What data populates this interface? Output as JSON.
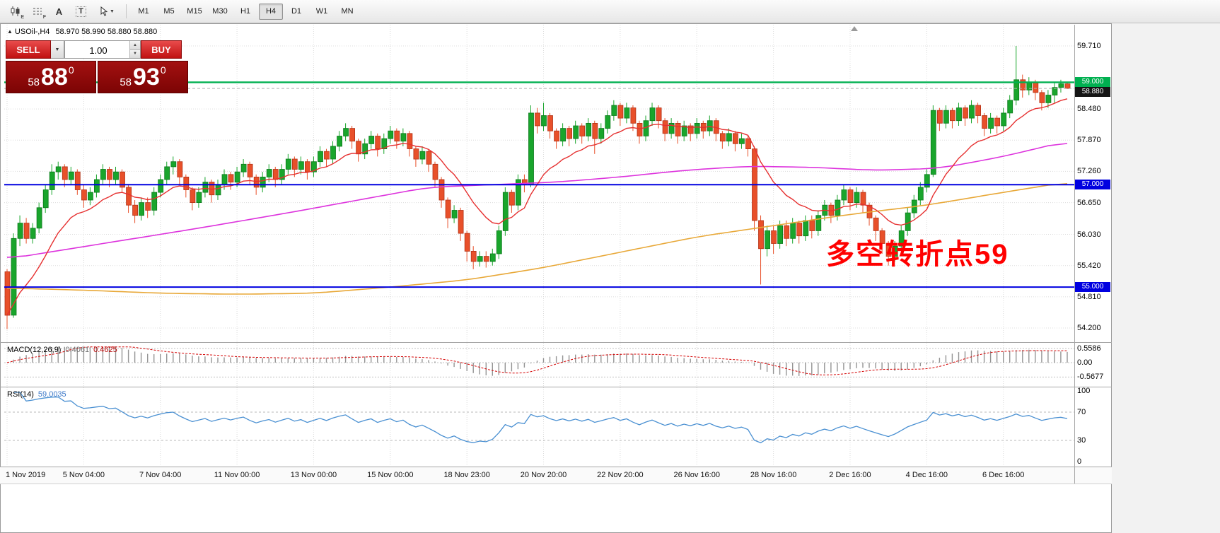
{
  "toolbar": {
    "tools": {
      "sub_e": "E",
      "sub_f": "F",
      "a_label": "A",
      "t_label": "T"
    },
    "timeframes": [
      "M1",
      "M5",
      "M15",
      "M30",
      "H1",
      "H4",
      "D1",
      "W1",
      "MN"
    ],
    "active_timeframe": "H4"
  },
  "chart": {
    "collapse_glyph": "▲",
    "symbol_title": "USOil-,H4",
    "ohlc_text": "58.970 58.990 58.880 58.880"
  },
  "trade_panel": {
    "sell_label": "SELL",
    "buy_label": "BUY",
    "volume": "1.00",
    "dropdown_glyph": "▼",
    "spin_up": "▲",
    "spin_down": "▼",
    "bid": {
      "prefix": "58",
      "big": "88",
      "sup": "0"
    },
    "ask": {
      "prefix": "58",
      "big": "93",
      "sup": "0"
    }
  },
  "annotation": {
    "text": "多空转折点59",
    "color": "#ff0000"
  },
  "macd_panel": {
    "label": "MACD(12,26,9)",
    "value_main": "0.4061",
    "value_signal": "0.4625",
    "axis_labels": [
      "0.5586",
      "0.00",
      "-0.5677"
    ]
  },
  "rsi_panel": {
    "label": "RSI(14)",
    "value": "59.0035",
    "axis_labels": [
      "100",
      "70",
      "30",
      "0"
    ]
  },
  "chart_data": {
    "type": "candlestick",
    "symbol": "USOil-",
    "timeframe": "H4",
    "up_color": "#19a52c",
    "down_color": "#e8502a",
    "price_ticks": [
      {
        "label": "59.710",
        "price": 59.71
      },
      {
        "label": "58.480",
        "price": 58.48
      },
      {
        "label": "57.870",
        "price": 57.87
      },
      {
        "label": "57.260",
        "price": 57.26
      },
      {
        "label": "56.650",
        "price": 56.65
      },
      {
        "label": "56.030",
        "price": 56.03
      },
      {
        "label": "55.420",
        "price": 55.42
      },
      {
        "label": "54.810",
        "price": 54.81
      },
      {
        "label": "54.200",
        "price": 54.2
      }
    ],
    "hlines": [
      {
        "price": 59.0,
        "label": "59.000",
        "color": "#00b050",
        "width": 2.4
      },
      {
        "price": 57.0,
        "label": "57.000",
        "color": "#0000e0",
        "width": 2
      },
      {
        "price": 55.0,
        "label": "55.000",
        "color": "#0000e0",
        "width": 2
      }
    ],
    "current_price": {
      "price": 58.88,
      "label": "58.880",
      "bg": "#151515"
    },
    "time_labels": [
      {
        "i": 0,
        "label": "1 Nov 2019"
      },
      {
        "i": 12,
        "label": "5 Nov 04:00"
      },
      {
        "i": 24,
        "label": "7 Nov 04:00"
      },
      {
        "i": 36,
        "label": "11 Nov 00:00"
      },
      {
        "i": 48,
        "label": "13 Nov 00:00"
      },
      {
        "i": 60,
        "label": "15 Nov 00:00"
      },
      {
        "i": 72,
        "label": "18 Nov 23:00"
      },
      {
        "i": 84,
        "label": "20 Nov 20:00"
      },
      {
        "i": 96,
        "label": "22 Nov 20:00"
      },
      {
        "i": 108,
        "label": "26 Nov 16:00"
      },
      {
        "i": 120,
        "label": "28 Nov 16:00"
      },
      {
        "i": 132,
        "label": "2 Dec 16:00"
      },
      {
        "i": 144,
        "label": "4 Dec 16:00"
      },
      {
        "i": 156,
        "label": "6 Dec 16:00"
      }
    ],
    "overlays": {
      "ma_fast": {
        "color": "#e63030",
        "period": 13
      },
      "ma_mid": {
        "color": "#dd33dd",
        "points": [
          [
            0,
            55.55
          ],
          [
            10,
            55.75
          ],
          [
            20,
            55.95
          ],
          [
            30,
            56.15
          ],
          [
            44,
            56.45
          ],
          [
            55,
            56.7
          ],
          [
            66,
            56.95
          ],
          [
            76,
            57.0
          ],
          [
            86,
            57.05
          ],
          [
            96,
            57.15
          ],
          [
            106,
            57.28
          ],
          [
            116,
            57.36
          ],
          [
            126,
            57.34
          ],
          [
            136,
            57.28
          ],
          [
            146,
            57.32
          ],
          [
            156,
            57.55
          ],
          [
            166,
            57.85
          ]
        ]
      },
      "ma_slow": {
        "color": "#e8a838",
        "points": [
          [
            0,
            54.98
          ],
          [
            12,
            54.94
          ],
          [
            24,
            54.88
          ],
          [
            36,
            54.86
          ],
          [
            48,
            54.88
          ],
          [
            60,
            55.0
          ],
          [
            72,
            55.14
          ],
          [
            84,
            55.38
          ],
          [
            96,
            55.68
          ],
          [
            108,
            55.98
          ],
          [
            120,
            56.2
          ],
          [
            132,
            56.42
          ],
          [
            144,
            56.6
          ],
          [
            156,
            56.85
          ],
          [
            166,
            57.05
          ]
        ]
      }
    },
    "macd": {
      "fast": 12,
      "slow": 26,
      "signal": 9,
      "hist_color": "#949494",
      "signal_color": "#d40000",
      "levels": [
        0.5586,
        0.0,
        -0.5677
      ]
    },
    "rsi": {
      "period": 14,
      "color": "#4a90d2",
      "levels": [
        70,
        30
      ]
    },
    "candles": [
      [
        55.3,
        55.35,
        54.18,
        54.45
      ],
      [
        54.45,
        56.05,
        54.4,
        55.95
      ],
      [
        55.95,
        56.4,
        55.8,
        56.25
      ],
      [
        56.25,
        56.35,
        55.85,
        55.95
      ],
      [
        55.95,
        56.25,
        55.85,
        56.15
      ],
      [
        56.15,
        56.65,
        56.05,
        56.55
      ],
      [
        56.55,
        57.0,
        56.45,
        56.9
      ],
      [
        56.9,
        57.4,
        56.8,
        57.25
      ],
      [
        57.25,
        57.45,
        57.1,
        57.35
      ],
      [
        57.35,
        57.4,
        56.95,
        57.1
      ],
      [
        57.1,
        57.35,
        57.0,
        57.25
      ],
      [
        57.25,
        57.3,
        56.8,
        56.9
      ],
      [
        56.9,
        57.0,
        56.55,
        56.7
      ],
      [
        56.7,
        56.95,
        56.6,
        56.85
      ],
      [
        56.85,
        57.2,
        56.75,
        57.1
      ],
      [
        57.1,
        57.4,
        57.0,
        57.3
      ],
      [
        57.3,
        57.35,
        56.95,
        57.1
      ],
      [
        57.1,
        57.35,
        57.0,
        57.25
      ],
      [
        57.25,
        57.3,
        56.85,
        56.95
      ],
      [
        56.95,
        57.0,
        56.45,
        56.6
      ],
      [
        56.6,
        56.7,
        56.25,
        56.4
      ],
      [
        56.4,
        56.75,
        56.3,
        56.65
      ],
      [
        56.65,
        56.75,
        56.35,
        56.5
      ],
      [
        56.5,
        56.95,
        56.4,
        56.85
      ],
      [
        56.85,
        57.2,
        56.75,
        57.1
      ],
      [
        57.1,
        57.45,
        57.0,
        57.35
      ],
      [
        57.35,
        57.55,
        57.2,
        57.45
      ],
      [
        57.45,
        57.5,
        57.0,
        57.15
      ],
      [
        57.15,
        57.2,
        56.75,
        56.9
      ],
      [
        56.9,
        56.95,
        56.5,
        56.65
      ],
      [
        56.65,
        56.95,
        56.55,
        56.85
      ],
      [
        56.85,
        57.15,
        56.75,
        57.05
      ],
      [
        57.05,
        57.1,
        56.65,
        56.8
      ],
      [
        56.8,
        57.1,
        56.7,
        57.0
      ],
      [
        57.0,
        57.3,
        56.9,
        57.2
      ],
      [
        57.2,
        57.25,
        56.9,
        57.05
      ],
      [
        57.05,
        57.35,
        56.95,
        57.25
      ],
      [
        57.25,
        57.5,
        57.15,
        57.4
      ],
      [
        57.4,
        57.45,
        57.0,
        57.15
      ],
      [
        57.15,
        57.2,
        56.8,
        56.95
      ],
      [
        56.95,
        57.25,
        56.85,
        57.15
      ],
      [
        57.15,
        57.4,
        57.05,
        57.3
      ],
      [
        57.3,
        57.35,
        56.95,
        57.1
      ],
      [
        57.1,
        57.4,
        57.0,
        57.3
      ],
      [
        57.3,
        57.6,
        57.2,
        57.5
      ],
      [
        57.5,
        57.55,
        57.15,
        57.3
      ],
      [
        57.3,
        57.55,
        57.2,
        57.45
      ],
      [
        57.45,
        57.5,
        57.1,
        57.25
      ],
      [
        57.25,
        57.55,
        57.15,
        57.45
      ],
      [
        57.45,
        57.75,
        57.35,
        57.65
      ],
      [
        57.65,
        57.7,
        57.35,
        57.5
      ],
      [
        57.5,
        57.85,
        57.4,
        57.75
      ],
      [
        57.75,
        58.05,
        57.65,
        57.95
      ],
      [
        57.95,
        58.2,
        57.85,
        58.1
      ],
      [
        58.1,
        58.15,
        57.7,
        57.85
      ],
      [
        57.85,
        57.9,
        57.45,
        57.6
      ],
      [
        57.6,
        57.9,
        57.5,
        57.8
      ],
      [
        57.8,
        58.05,
        57.7,
        57.95
      ],
      [
        57.95,
        58.0,
        57.55,
        57.7
      ],
      [
        57.7,
        58.0,
        57.6,
        57.9
      ],
      [
        57.9,
        58.15,
        57.8,
        58.05
      ],
      [
        58.05,
        58.1,
        57.7,
        57.85
      ],
      [
        57.85,
        58.1,
        57.75,
        58.0
      ],
      [
        58.0,
        58.05,
        57.55,
        57.7
      ],
      [
        57.7,
        57.75,
        57.35,
        57.5
      ],
      [
        57.5,
        57.75,
        57.4,
        57.65
      ],
      [
        57.65,
        57.7,
        57.25,
        57.4
      ],
      [
        57.4,
        57.45,
        56.95,
        57.1
      ],
      [
        57.1,
        57.15,
        56.55,
        56.7
      ],
      [
        56.7,
        56.75,
        56.15,
        56.35
      ],
      [
        56.35,
        56.6,
        56.25,
        56.5
      ],
      [
        56.5,
        56.55,
        55.9,
        56.05
      ],
      [
        56.05,
        56.1,
        55.5,
        55.7
      ],
      [
        55.7,
        55.8,
        55.35,
        55.5
      ],
      [
        55.5,
        55.7,
        55.4,
        55.6
      ],
      [
        55.6,
        55.7,
        55.38,
        55.5
      ],
      [
        55.5,
        55.75,
        55.42,
        55.65
      ],
      [
        55.65,
        56.2,
        55.55,
        56.1
      ],
      [
        56.1,
        56.95,
        56.0,
        56.85
      ],
      [
        56.85,
        56.9,
        56.45,
        56.6
      ],
      [
        56.6,
        57.2,
        56.5,
        57.1
      ],
      [
        57.1,
        57.2,
        56.85,
        57.0
      ],
      [
        57.0,
        58.55,
        56.95,
        58.4
      ],
      [
        58.4,
        58.5,
        58.0,
        58.15
      ],
      [
        58.15,
        58.6,
        58.05,
        58.35
      ],
      [
        58.35,
        58.4,
        57.9,
        58.05
      ],
      [
        58.05,
        58.1,
        57.7,
        57.85
      ],
      [
        57.85,
        58.2,
        57.75,
        58.1
      ],
      [
        58.1,
        58.15,
        57.75,
        57.9
      ],
      [
        57.9,
        58.25,
        57.8,
        58.15
      ],
      [
        58.15,
        58.2,
        57.8,
        57.95
      ],
      [
        57.95,
        58.3,
        57.85,
        58.2
      ],
      [
        58.2,
        58.25,
        57.6,
        57.9
      ],
      [
        57.9,
        58.2,
        57.8,
        58.1
      ],
      [
        58.1,
        58.45,
        58.0,
        58.35
      ],
      [
        58.35,
        58.65,
        58.25,
        58.55
      ],
      [
        58.55,
        58.6,
        58.15,
        58.3
      ],
      [
        58.3,
        58.6,
        58.2,
        58.5
      ],
      [
        58.5,
        58.55,
        58.05,
        58.2
      ],
      [
        58.2,
        58.25,
        57.8,
        57.95
      ],
      [
        57.95,
        58.35,
        57.85,
        58.25
      ],
      [
        58.25,
        58.6,
        58.15,
        58.5
      ],
      [
        58.5,
        58.55,
        58.1,
        58.25
      ],
      [
        58.25,
        58.3,
        57.85,
        58.0
      ],
      [
        58.0,
        58.3,
        57.9,
        58.2
      ],
      [
        58.2,
        58.25,
        57.8,
        57.95
      ],
      [
        57.95,
        58.25,
        57.85,
        58.15
      ],
      [
        58.15,
        58.2,
        57.85,
        58.0
      ],
      [
        58.0,
        58.3,
        57.9,
        58.2
      ],
      [
        58.2,
        58.25,
        57.9,
        58.05
      ],
      [
        58.05,
        58.35,
        57.95,
        58.25
      ],
      [
        58.25,
        58.3,
        57.85,
        58.0
      ],
      [
        58.0,
        58.05,
        57.7,
        57.85
      ],
      [
        57.85,
        58.1,
        57.75,
        58.0
      ],
      [
        58.0,
        58.05,
        57.65,
        57.8
      ],
      [
        57.8,
        58.0,
        57.7,
        57.9
      ],
      [
        57.9,
        57.95,
        57.55,
        57.7
      ],
      [
        57.7,
        57.75,
        56.1,
        56.3
      ],
      [
        56.3,
        56.4,
        55.05,
        55.75
      ],
      [
        55.75,
        56.2,
        55.6,
        56.1
      ],
      [
        56.1,
        56.2,
        55.65,
        55.85
      ],
      [
        55.85,
        56.3,
        55.75,
        56.2
      ],
      [
        56.2,
        56.3,
        55.8,
        55.95
      ],
      [
        55.95,
        56.35,
        55.85,
        56.25
      ],
      [
        56.25,
        56.3,
        55.85,
        56.0
      ],
      [
        56.0,
        56.4,
        55.9,
        56.3
      ],
      [
        56.3,
        56.4,
        55.95,
        56.1
      ],
      [
        56.1,
        56.5,
        56.0,
        56.4
      ],
      [
        56.4,
        56.7,
        56.3,
        56.6
      ],
      [
        56.6,
        56.65,
        56.25,
        56.4
      ],
      [
        56.4,
        56.8,
        56.3,
        56.7
      ],
      [
        56.7,
        57.0,
        56.6,
        56.9
      ],
      [
        56.9,
        56.95,
        56.5,
        56.65
      ],
      [
        56.65,
        56.95,
        56.55,
        56.85
      ],
      [
        56.85,
        56.9,
        56.45,
        56.6
      ],
      [
        56.6,
        56.65,
        56.2,
        56.35
      ],
      [
        56.35,
        56.4,
        55.9,
        56.1
      ],
      [
        56.1,
        56.15,
        55.65,
        55.85
      ],
      [
        55.85,
        55.9,
        55.42,
        55.6
      ],
      [
        55.6,
        55.9,
        55.5,
        55.8
      ],
      [
        55.8,
        56.2,
        55.7,
        56.1
      ],
      [
        56.1,
        56.55,
        56.0,
        56.45
      ],
      [
        56.45,
        56.8,
        56.35,
        56.7
      ],
      [
        56.7,
        57.05,
        56.6,
        56.95
      ],
      [
        56.95,
        57.3,
        56.85,
        57.2
      ],
      [
        57.2,
        58.55,
        57.15,
        58.45
      ],
      [
        58.45,
        58.5,
        58.05,
        58.2
      ],
      [
        58.2,
        58.55,
        58.1,
        58.45
      ],
      [
        58.45,
        58.5,
        58.1,
        58.25
      ],
      [
        58.25,
        58.6,
        58.15,
        58.5
      ],
      [
        58.5,
        58.55,
        58.15,
        58.3
      ],
      [
        58.3,
        58.65,
        58.2,
        58.55
      ],
      [
        58.55,
        58.6,
        58.2,
        58.35
      ],
      [
        58.35,
        58.4,
        57.95,
        58.1
      ],
      [
        58.1,
        58.4,
        58.0,
        58.3
      ],
      [
        58.3,
        58.35,
        58.0,
        58.15
      ],
      [
        58.15,
        58.5,
        58.05,
        58.4
      ],
      [
        58.4,
        58.75,
        58.3,
        58.65
      ],
      [
        58.65,
        59.71,
        58.55,
        59.05
      ],
      [
        59.05,
        59.15,
        58.7,
        58.85
      ],
      [
        58.85,
        59.1,
        58.75,
        59.0
      ],
      [
        59.0,
        59.05,
        58.65,
        58.8
      ],
      [
        58.8,
        58.85,
        58.45,
        58.6
      ],
      [
        58.6,
        58.85,
        58.5,
        58.75
      ],
      [
        58.75,
        59.0,
        58.6,
        58.9
      ],
      [
        58.9,
        59.05,
        58.8,
        58.97
      ],
      [
        58.97,
        58.99,
        58.88,
        58.88
      ]
    ]
  }
}
